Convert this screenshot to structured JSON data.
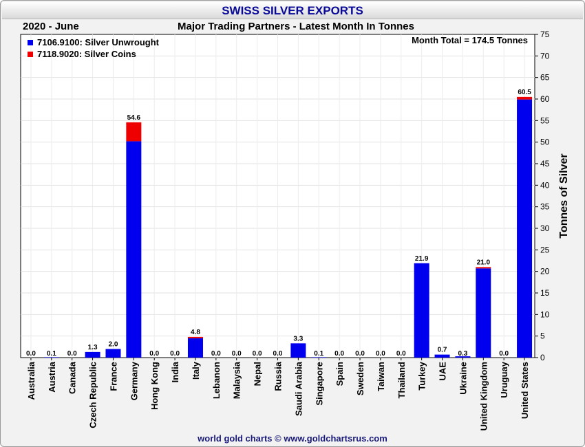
{
  "header": {
    "title": "SWISS SILVER EXPORTS",
    "date": "2020 - June",
    "subtitle": "Major Trading Partners - Latest Month In Tonnes"
  },
  "footer": {
    "credit": "world gold charts © www.goldchartsrus.com"
  },
  "chart_data": {
    "type": "bar",
    "stacked": true,
    "title": "SWISS SILVER EXPORTS",
    "subtitle": "Major Trading Partners - Latest Month In Tonnes",
    "ylabel": "Tonnes of Silver",
    "ylim": [
      0,
      75
    ],
    "ytick_step": 5,
    "y_axis_side": "right",
    "grid": true,
    "legend_position": "top-left",
    "annotation": "Month Total = 174.5 Tonnes",
    "categories": [
      "Australia",
      "Austria",
      "Canada",
      "Czech Republic",
      "France",
      "Germany",
      "Hong Kong",
      "India",
      "Italy",
      "Lebanon",
      "Malaysia",
      "Nepal",
      "Russia",
      "Saudi Arabia",
      "Singapore",
      "Spain",
      "Sweden",
      "Taiwan",
      "Thailand",
      "Turkey",
      "UAE",
      "Ukraine",
      "United Kingdom",
      "Uruguay",
      "United States"
    ],
    "series": [
      {
        "name": "7106.9100: Silver Unwrought",
        "color": "#0000ee",
        "values": [
          0.0,
          0.1,
          0.0,
          1.3,
          2.0,
          50.2,
          0.0,
          0.0,
          4.5,
          0.0,
          0.0,
          0.0,
          0.0,
          3.3,
          0.1,
          0.0,
          0.0,
          0.0,
          0.0,
          21.9,
          0.7,
          0.3,
          20.7,
          0.0,
          59.9
        ]
      },
      {
        "name": "7118.9020: Silver Coins",
        "color": "#ee0000",
        "values": [
          0.0,
          0.0,
          0.0,
          0.0,
          0.0,
          4.4,
          0.0,
          0.0,
          0.3,
          0.0,
          0.0,
          0.0,
          0.0,
          0.0,
          0.0,
          0.0,
          0.0,
          0.0,
          0.0,
          0.0,
          0.0,
          0.0,
          0.3,
          0.0,
          0.6
        ]
      }
    ],
    "totals": [
      "0.0",
      "0.1",
      "0.0",
      "1.3",
      "2.0",
      "54.6",
      "0.0",
      "0.0",
      "4.8",
      "0.0",
      "0.0",
      "0.0",
      "0.0",
      "3.3",
      "0.1",
      "0.0",
      "0.0",
      "0.0",
      "0.0",
      "21.9",
      "0.7",
      "0.3",
      "21.0",
      "0.0",
      "60.5"
    ]
  }
}
